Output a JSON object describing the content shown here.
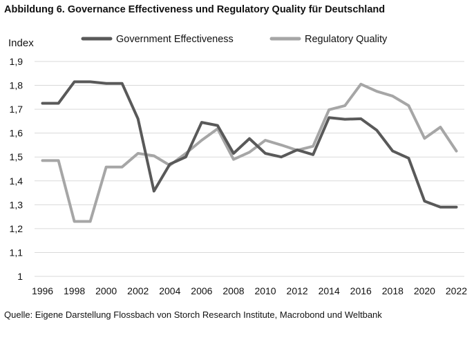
{
  "title": "Abbildung 6. Governance Effectiveness und Regulatory Quality für Deutschland",
  "source": "Quelle: Eigene Darstellung Flossbach von Storch Research Institute, Macrobond und Weltbank",
  "chart_data": {
    "type": "line",
    "ylabel": "Index",
    "xlabel": "",
    "ylim": [
      1,
      1.9
    ],
    "yticks": [
      "1",
      "1,1",
      "1,2",
      "1,3",
      "1,4",
      "1,5",
      "1,6",
      "1,7",
      "1,8",
      "1,9"
    ],
    "ytick_values": [
      1,
      1.1,
      1.2,
      1.3,
      1.4,
      1.5,
      1.6,
      1.7,
      1.8,
      1.9
    ],
    "xticks": [
      "1996",
      "1998",
      "2000",
      "2002",
      "2004",
      "2006",
      "2008",
      "2010",
      "2012",
      "2014",
      "2016",
      "2018",
      "2020",
      "2022"
    ],
    "xtick_values": [
      1996,
      1998,
      2000,
      2002,
      2004,
      2006,
      2008,
      2010,
      2012,
      2014,
      2016,
      2018,
      2020,
      2022
    ],
    "xlim": [
      1995.5,
      2022.5
    ],
    "grid": "horizontal",
    "legend_position": "top",
    "series": [
      {
        "name": "Government Effectiveness",
        "color": "#595959",
        "x": [
          1996,
          1997,
          1998,
          1999,
          2000,
          2001,
          2002,
          2003,
          2004,
          2005,
          2006,
          2007,
          2008,
          2009,
          2010,
          2011,
          2012,
          2013,
          2014,
          2015,
          2016,
          2017,
          2018,
          2019,
          2020,
          2021,
          2022
        ],
        "values": [
          1.725,
          1.725,
          1.815,
          1.815,
          1.808,
          1.808,
          1.66,
          1.357,
          1.47,
          1.5,
          1.645,
          1.632,
          1.515,
          1.577,
          1.515,
          1.5,
          1.53,
          1.51,
          1.665,
          1.658,
          1.66,
          1.612,
          1.525,
          1.495,
          1.315,
          1.29,
          1.29
        ]
      },
      {
        "name": "Regulatory Quality",
        "color": "#a6a6a6",
        "x": [
          1996,
          1997,
          1998,
          1999,
          2000,
          2001,
          2002,
          2003,
          2004,
          2005,
          2006,
          2007,
          2008,
          2009,
          2010,
          2011,
          2012,
          2013,
          2014,
          2015,
          2016,
          2017,
          2018,
          2019,
          2020,
          2021,
          2022
        ],
        "values": [
          1.485,
          1.485,
          1.23,
          1.23,
          1.458,
          1.458,
          1.515,
          1.505,
          1.465,
          1.515,
          1.57,
          1.618,
          1.49,
          1.52,
          1.57,
          1.55,
          1.528,
          1.545,
          1.698,
          1.715,
          1.805,
          1.775,
          1.755,
          1.715,
          1.578,
          1.625,
          1.525
        ]
      }
    ]
  }
}
